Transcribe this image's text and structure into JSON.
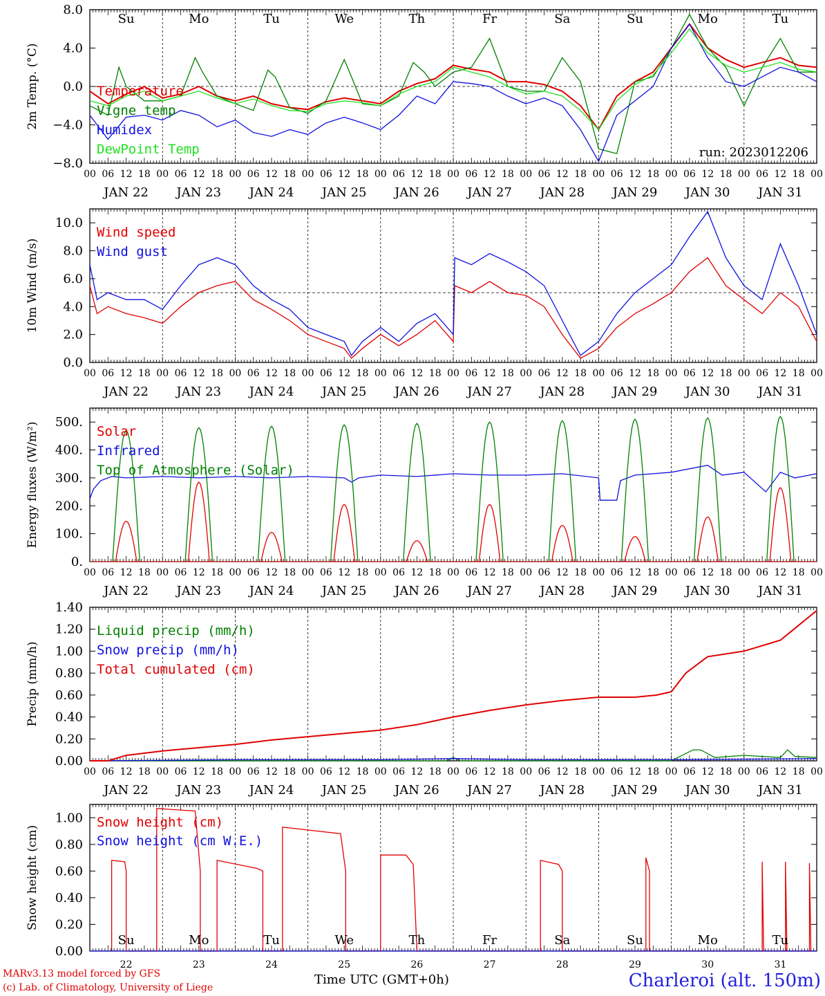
{
  "footer": {
    "credit_line1": "MARv3.13 model forced by GFS",
    "credit_line2": "(c) Lab. of Climatology, University of Liege",
    "xaxis_title": "Time UTC (GMT+0h)",
    "station": "Charleroi (alt. 150m)"
  },
  "run_label": "run: 2023012206",
  "hour_ticks": [
    "00",
    "06",
    "12",
    "18"
  ],
  "dates": [
    "JAN 22",
    "JAN 23",
    "JAN 24",
    "JAN 25",
    "JAN 26",
    "JAN 27",
    "JAN 28",
    "JAN 29",
    "JAN 30",
    "JAN 31"
  ],
  "day_numbers": [
    "22",
    "23",
    "24",
    "25",
    "26",
    "27",
    "28",
    "29",
    "30",
    "31"
  ],
  "weekdays": [
    "Su",
    "Mo",
    "Tu",
    "We",
    "Th",
    "Fr",
    "Sa",
    "Su",
    "Mo",
    "Tu"
  ],
  "weekday_colors": [
    "#e00000",
    "#000000",
    "#000000",
    "#000000",
    "#000000",
    "#000000",
    "#e00000",
    "#e00000",
    "#000000",
    "#000000"
  ],
  "colors": {
    "red": "#e00000",
    "green": "#008000",
    "blue": "#1010e0",
    "lightgreen": "#20e020"
  },
  "chart_data": [
    {
      "type": "line",
      "ylabel": "2m Temp. (°C)",
      "ylim": [
        -8,
        8
      ],
      "yticks": [
        "8.0",
        "4.0",
        "0.0",
        "−4.0",
        "−8.0"
      ],
      "ytick_values": [
        8,
        4,
        0,
        -4,
        -8
      ],
      "ref_line": 0,
      "x_unit": "days since JAN 22 00 UTC",
      "series": [
        {
          "name": "Temperature",
          "color": "#e00000",
          "x": [
            0,
            0.25,
            0.5,
            0.75,
            1,
            1.25,
            1.5,
            1.75,
            2,
            2.25,
            2.5,
            2.75,
            3,
            3.25,
            3.5,
            3.75,
            4,
            4.25,
            4.5,
            4.75,
            5,
            5.25,
            5.5,
            5.75,
            6,
            6.25,
            6.5,
            6.75,
            7,
            7.25,
            7.5,
            7.75,
            8,
            8.25,
            8.5,
            8.75,
            9,
            9.25,
            9.5,
            9.75,
            10
          ],
          "values": [
            -0.5,
            -1.8,
            -0.8,
            0.0,
            -1.2,
            -0.8,
            0.0,
            -1.0,
            -1.5,
            -1.0,
            -1.8,
            -2.2,
            -2.4,
            -1.6,
            -1.2,
            -1.5,
            -1.8,
            -0.5,
            0.3,
            0.8,
            2.2,
            1.8,
            1.5,
            0.5,
            0.5,
            0.2,
            -0.5,
            -2.0,
            -4.5,
            -1.0,
            0.5,
            1.5,
            4.0,
            6.5,
            4.0,
            2.8,
            2.0,
            2.5,
            3.0,
            2.2,
            2.0
          ]
        },
        {
          "name": "Vigne temp",
          "color": "#008000",
          "x": [
            0,
            0.25,
            0.4,
            0.5,
            0.75,
            1,
            1.25,
            1.45,
            1.55,
            1.75,
            2,
            2.25,
            2.45,
            2.55,
            2.75,
            3,
            3.25,
            3.5,
            3.6,
            3.75,
            4,
            4.25,
            4.45,
            4.6,
            4.75,
            5,
            5.25,
            5.5,
            5.6,
            5.75,
            6,
            6.25,
            6.5,
            6.75,
            7,
            7.25,
            7.5,
            7.75,
            8,
            8.25,
            8.5,
            8.75,
            9,
            9.25,
            9.5,
            9.75,
            10
          ],
          "values": [
            -2.0,
            -3.0,
            2.0,
            0.0,
            -1.5,
            -1.5,
            -1.0,
            3.0,
            1.5,
            -1.0,
            -1.8,
            -2.5,
            1.7,
            1.0,
            -2.2,
            -2.8,
            -1.5,
            2.8,
            1.0,
            -1.8,
            -2.0,
            -1.0,
            2.5,
            1.5,
            0.0,
            1.5,
            2.0,
            5.0,
            3.0,
            0.0,
            -0.5,
            -0.5,
            3.0,
            0.5,
            -6.5,
            -7.0,
            0.5,
            1.0,
            4.0,
            7.5,
            4.0,
            2.0,
            -2.0,
            2.0,
            5.0,
            1.5,
            1.5
          ]
        },
        {
          "name": "Humidex",
          "color": "#1010e0",
          "x": [
            0,
            0.25,
            0.5,
            0.75,
            1,
            1.25,
            1.5,
            1.75,
            2,
            2.25,
            2.5,
            2.75,
            3,
            3.25,
            3.5,
            3.75,
            4,
            4.25,
            4.5,
            4.75,
            5,
            5.25,
            5.5,
            5.75,
            6,
            6.25,
            6.5,
            6.75,
            7,
            7.25,
            7.5,
            7.75,
            8,
            8.25,
            8.5,
            8.75,
            9,
            9.25,
            9.5,
            9.75,
            10
          ],
          "values": [
            -3.0,
            -5.5,
            -3.2,
            -3.0,
            -3.5,
            -2.5,
            -3.0,
            -4.2,
            -3.5,
            -4.8,
            -5.2,
            -4.5,
            -5.0,
            -3.8,
            -3.2,
            -3.8,
            -4.5,
            -3.0,
            -1.0,
            -1.8,
            0.5,
            0.3,
            0.0,
            -1.0,
            -1.8,
            -1.2,
            -2.0,
            -4.5,
            -7.8,
            -3.0,
            -1.5,
            0.0,
            4.0,
            6.5,
            3.0,
            0.5,
            0.0,
            1.0,
            2.0,
            1.5,
            0.5
          ]
        },
        {
          "name": "DewPoint Temp",
          "color": "#20e020",
          "x": [
            0,
            0.25,
            0.5,
            0.75,
            1,
            1.25,
            1.5,
            1.75,
            2,
            2.25,
            2.5,
            2.75,
            3,
            3.25,
            3.5,
            3.75,
            4,
            4.25,
            4.5,
            4.75,
            5,
            5.25,
            5.5,
            5.75,
            6,
            6.25,
            6.5,
            6.75,
            7,
            7.25,
            7.5,
            7.75,
            8,
            8.25,
            8.5,
            8.75,
            9,
            9.25,
            9.5,
            9.75,
            10
          ],
          "values": [
            -1.5,
            -2.0,
            -1.0,
            -0.5,
            -1.5,
            -1.0,
            -0.5,
            -1.2,
            -1.8,
            -1.3,
            -2.0,
            -2.5,
            -2.6,
            -1.8,
            -1.5,
            -1.7,
            -2.0,
            -0.8,
            0.0,
            0.5,
            2.0,
            1.5,
            1.0,
            0.0,
            -0.8,
            -0.5,
            -1.0,
            -2.5,
            -4.5,
            -1.5,
            0.2,
            1.2,
            3.5,
            6.0,
            3.5,
            2.2,
            1.5,
            2.0,
            2.5,
            1.8,
            1.5
          ]
        }
      ]
    },
    {
      "type": "line",
      "ylabel": "10m Wind (m/s)",
      "ylim": [
        0,
        11
      ],
      "yticks": [
        "10.0",
        "8.0",
        "6.0",
        "4.0",
        "2.0",
        "0.0"
      ],
      "ytick_values": [
        10,
        8,
        6,
        4,
        2,
        0
      ],
      "ref_line": 5,
      "x_unit": "days since JAN 22 00 UTC",
      "series": [
        {
          "name": "Wind speed",
          "color": "#e00000",
          "x": [
            0,
            0.1,
            0.25,
            0.5,
            0.75,
            1,
            1.25,
            1.5,
            1.75,
            2,
            2.25,
            2.5,
            2.75,
            3,
            3.25,
            3.5,
            3.6,
            3.75,
            4,
            4.25,
            4.5,
            4.75,
            5,
            5.02,
            5.25,
            5.5,
            5.75,
            6,
            6.25,
            6.5,
            6.75,
            7,
            7.25,
            7.5,
            7.75,
            8,
            8.25,
            8.5,
            8.75,
            9,
            9.25,
            9.5,
            9.75,
            10
          ],
          "values": [
            5.5,
            3.5,
            4.0,
            3.5,
            3.2,
            2.8,
            4.0,
            5.0,
            5.5,
            5.8,
            4.5,
            3.8,
            3.0,
            2.0,
            1.5,
            1.0,
            0.3,
            1.0,
            2.0,
            1.2,
            2.0,
            3.0,
            1.5,
            5.5,
            5.0,
            5.8,
            5.0,
            4.8,
            4.0,
            2.0,
            0.3,
            1.0,
            2.5,
            3.5,
            4.2,
            5.0,
            6.5,
            7.5,
            5.5,
            4.5,
            3.5,
            5.0,
            4.0,
            1.5
          ]
        },
        {
          "name": "Wind gust",
          "color": "#1010e0",
          "x": [
            0,
            0.1,
            0.25,
            0.5,
            0.75,
            1,
            1.25,
            1.5,
            1.75,
            2,
            2.25,
            2.5,
            2.75,
            3,
            3.25,
            3.5,
            3.6,
            3.75,
            4,
            4.25,
            4.5,
            4.75,
            5,
            5.02,
            5.25,
            5.5,
            5.75,
            6,
            6.25,
            6.5,
            6.75,
            7,
            7.25,
            7.5,
            7.75,
            8,
            8.25,
            8.5,
            8.75,
            9,
            9.25,
            9.5,
            9.75,
            10
          ],
          "values": [
            7.0,
            4.5,
            5.0,
            4.5,
            4.5,
            3.8,
            5.5,
            7.0,
            7.5,
            7.0,
            5.5,
            4.5,
            3.8,
            2.5,
            2.0,
            1.5,
            0.5,
            1.5,
            2.5,
            1.5,
            2.8,
            3.5,
            2.0,
            7.5,
            7.0,
            7.8,
            7.2,
            6.5,
            5.5,
            3.0,
            0.5,
            1.5,
            3.5,
            5.0,
            6.0,
            7.0,
            9.0,
            10.8,
            7.5,
            5.5,
            4.5,
            8.5,
            5.5,
            2.0
          ]
        }
      ]
    },
    {
      "type": "line",
      "ylabel": "Energy fluxes (W/m²)",
      "ylim": [
        0,
        550
      ],
      "yticks": [
        "500.",
        "400.",
        "300.",
        "200.",
        "100.",
        "0."
      ],
      "ytick_values": [
        500,
        400,
        300,
        200,
        100,
        0
      ],
      "x_unit": "days since JAN 22 00 UTC",
      "daily_peaks": {
        "Top of Atmosphere (Solar)": [
          470,
          480,
          485,
          490,
          495,
          500,
          505,
          510,
          515,
          520
        ],
        "Solar": [
          145,
          285,
          105,
          205,
          75,
          205,
          130,
          90,
          160,
          265
        ]
      },
      "series": [
        {
          "name": "Solar",
          "color": "#e00000"
        },
        {
          "name": "Infrared",
          "color": "#1010e0",
          "x": [
            0,
            0.05,
            0.15,
            0.3,
            0.5,
            1,
            1.5,
            2,
            2.5,
            3,
            3.5,
            3.6,
            3.7,
            4,
            4.5,
            5,
            5.5,
            6,
            6.5,
            7,
            7.02,
            7.25,
            7.3,
            7.5,
            8,
            8.5,
            8.7,
            9,
            9.3,
            9.5,
            9.7,
            10
          ],
          "values": [
            225,
            260,
            290,
            305,
            300,
            305,
            300,
            305,
            300,
            305,
            300,
            285,
            300,
            310,
            305,
            315,
            310,
            310,
            315,
            300,
            220,
            220,
            290,
            310,
            320,
            345,
            310,
            320,
            250,
            320,
            300,
            315
          ]
        },
        {
          "name": "Top of Atmosphere (Solar)",
          "color": "#008000"
        }
      ]
    },
    {
      "type": "line",
      "ylabel": "Precip (mm/h)",
      "ylim": [
        0,
        1.4
      ],
      "yticks": [
        "1.40",
        "1.20",
        "1.00",
        "0.80",
        "0.60",
        "0.40",
        "0.20",
        "0.00"
      ],
      "ytick_values": [
        1.4,
        1.2,
        1.0,
        0.8,
        0.6,
        0.4,
        0.2,
        0.0
      ],
      "x_unit": "days since JAN 22 00 UTC",
      "series": [
        {
          "name": "Liquid precip (mm/h)",
          "color": "#008000",
          "x": [
            0,
            4,
            4.9,
            5,
            5.1,
            8,
            8.3,
            8.4,
            8.6,
            9,
            9.5,
            9.6,
            9.7,
            10
          ],
          "values": [
            0,
            0,
            0,
            0.03,
            0,
            0,
            0.1,
            0.1,
            0.03,
            0.05,
            0.03,
            0.1,
            0.04,
            0.03
          ]
        },
        {
          "name": "Snow precip (mm/h)",
          "color": "#1010e0",
          "x": [
            0,
            2,
            4,
            5,
            6,
            7,
            8,
            10
          ],
          "values": [
            0,
            0.01,
            0.01,
            0.02,
            0.01,
            0.01,
            0.01,
            0.02
          ]
        },
        {
          "name": "Total cumulated (cm)",
          "color": "#e00000",
          "x": [
            0,
            0.25,
            0.5,
            1,
            1.5,
            2,
            2.5,
            3,
            3.5,
            4,
            4.5,
            5,
            5.5,
            6,
            6.5,
            7,
            7.5,
            7.8,
            8,
            8.2,
            8.5,
            9,
            9.5,
            10
          ],
          "values": [
            0,
            0.0,
            0.05,
            0.09,
            0.12,
            0.15,
            0.19,
            0.22,
            0.25,
            0.28,
            0.33,
            0.4,
            0.46,
            0.51,
            0.55,
            0.58,
            0.58,
            0.6,
            0.63,
            0.8,
            0.95,
            1.0,
            1.1,
            1.37
          ]
        }
      ]
    },
    {
      "type": "line",
      "ylabel": "Snow height (cm)",
      "ylim": [
        0,
        1.1
      ],
      "yticks": [
        "1.00",
        "0.80",
        "0.60",
        "0.40",
        "0.20",
        "0.00"
      ],
      "ytick_values": [
        1.0,
        0.8,
        0.6,
        0.4,
        0.2,
        0.0
      ],
      "x_unit": "days since JAN 22 00 UTC",
      "series": [
        {
          "name": "Snow height (cm)",
          "color": "#e00000",
          "x": [
            0.3,
            0.3,
            0.48,
            0.5,
            0.5,
            0.92,
            0.92,
            1.45,
            1.52,
            1.52,
            1.75,
            1.75,
            2.3,
            2.38,
            2.38,
            2.65,
            2.65,
            3.45,
            3.52,
            3.52,
            4.0,
            4.0,
            4.35,
            4.45,
            4.5,
            4.5,
            5.0,
            5.0,
            5.3,
            5.3,
            6.2,
            6.2,
            6.45,
            6.5,
            6.5,
            7.65,
            7.65,
            7.7,
            7.7,
            9.25,
            9.25,
            9.27,
            9.27,
            9.57,
            9.57,
            9.59,
            9.59,
            9.9,
            9.9,
            9.92,
            9.92,
            10
          ],
          "values": [
            0,
            0.68,
            0.67,
            0.6,
            0,
            0,
            1.07,
            1.05,
            0.6,
            0,
            0,
            0.68,
            0.62,
            0.6,
            0,
            0,
            0.93,
            0.88,
            0.6,
            0,
            0,
            0.72,
            0.72,
            0.65,
            0,
            0,
            0,
            0,
            0,
            0,
            0,
            0.68,
            0.65,
            0.6,
            0,
            0,
            0.7,
            0.6,
            0,
            0,
            0.67,
            0,
            0,
            0,
            0.67,
            0,
            0,
            0,
            0.66,
            0,
            0,
            0
          ]
        },
        {
          "name": "Snow height (cm W.E.)",
          "color": "#1010e0",
          "x": [
            0,
            10
          ],
          "values": [
            0,
            0
          ]
        }
      ]
    }
  ]
}
